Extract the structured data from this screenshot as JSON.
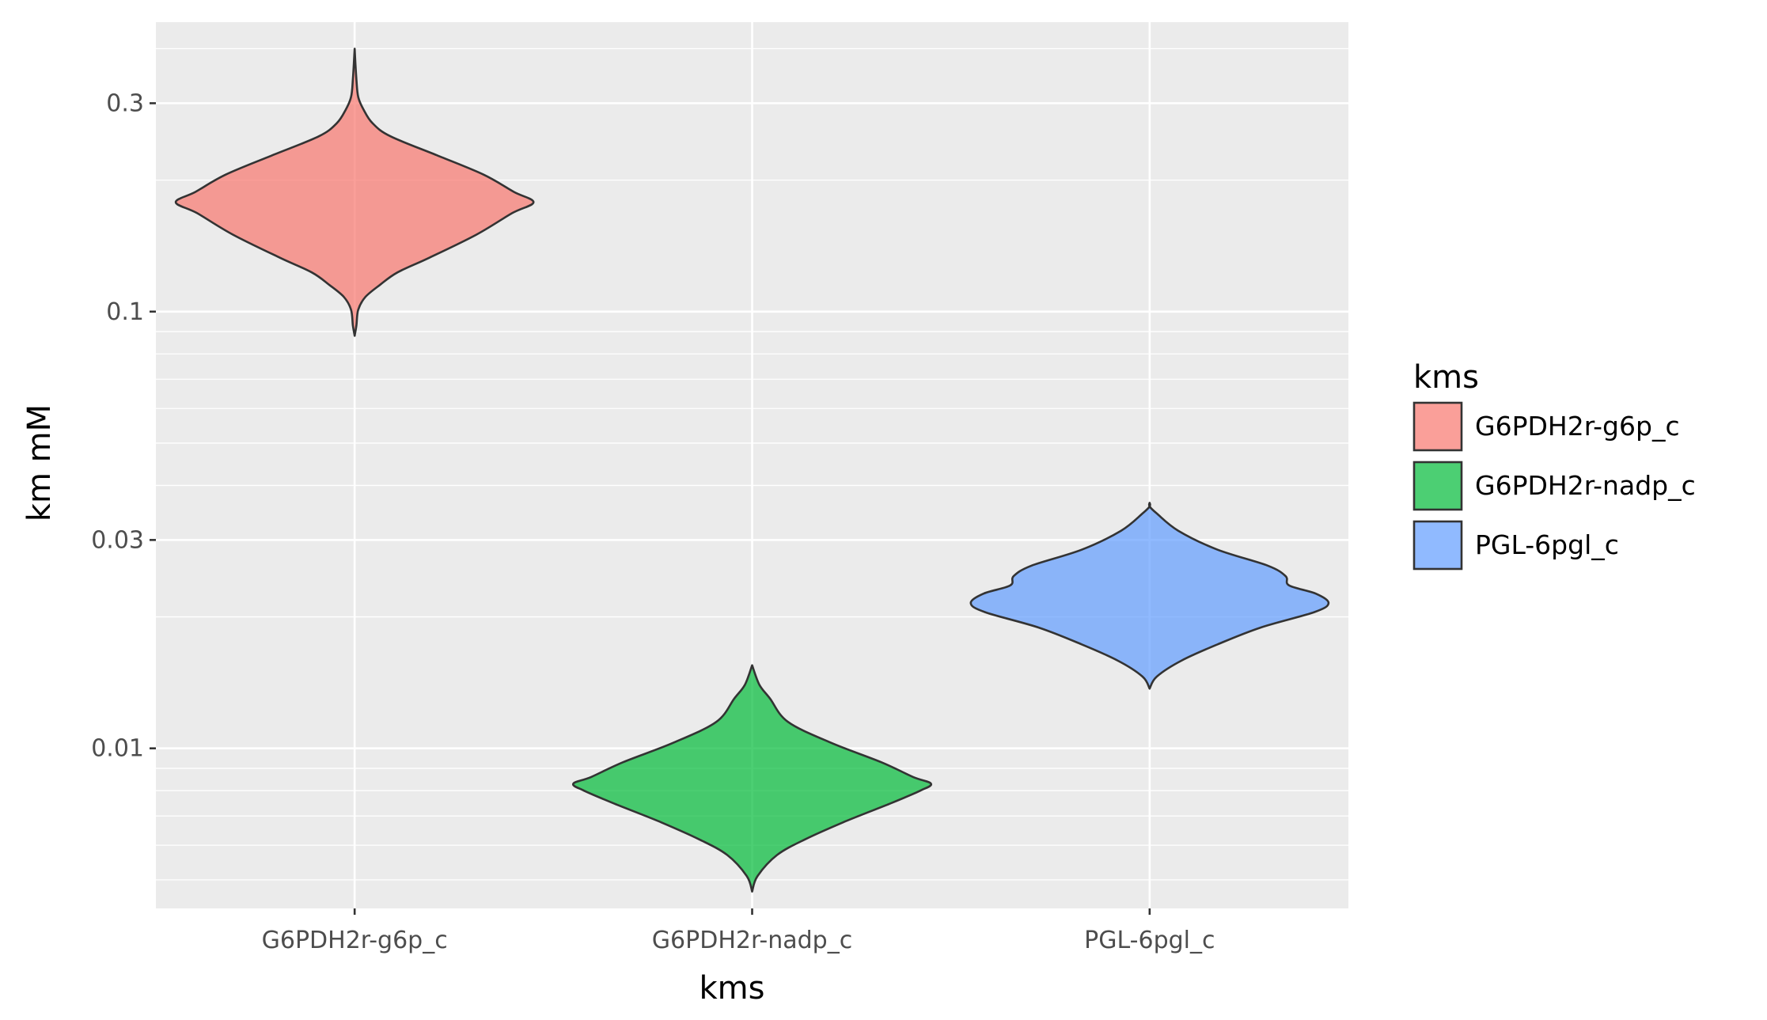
{
  "chart_data": {
    "type": "violin",
    "xlabel": "kms",
    "ylabel": "km mM",
    "categories": [
      "G6PDH2r-g6p_c",
      "G6PDH2r-nadp_c",
      "PGL-6pgl_c"
    ],
    "y_scale": "log10",
    "ylim": [
      0.0043,
      0.46
    ],
    "yticks": [
      0.01,
      0.03,
      0.1,
      0.3
    ],
    "ytick_labels": [
      "0.01",
      "0.03",
      "0.1",
      "0.3"
    ],
    "grid": true,
    "legend": {
      "title": "kms",
      "position": "right",
      "entries": [
        "G6PDH2r-g6p_c",
        "G6PDH2r-nadp_c",
        "PGL-6pgl_c"
      ]
    },
    "series": [
      {
        "category": "G6PDH2r-g6p_c",
        "color": "#f8766d",
        "y_min": 0.088,
        "y_max": 0.4,
        "density_profile": [
          [
            0.088,
            0.0
          ],
          [
            0.093,
            0.01
          ],
          [
            0.101,
            0.02
          ],
          [
            0.108,
            0.06
          ],
          [
            0.115,
            0.14
          ],
          [
            0.123,
            0.24
          ],
          [
            0.133,
            0.42
          ],
          [
            0.15,
            0.68
          ],
          [
            0.168,
            0.88
          ],
          [
            0.178,
            1.0
          ],
          [
            0.188,
            0.89
          ],
          [
            0.206,
            0.72
          ],
          [
            0.228,
            0.46
          ],
          [
            0.252,
            0.2
          ],
          [
            0.27,
            0.1
          ],
          [
            0.29,
            0.05
          ],
          [
            0.31,
            0.02
          ],
          [
            0.34,
            0.01
          ],
          [
            0.4,
            0.0
          ]
        ]
      },
      {
        "category": "G6PDH2r-nadp_c",
        "color": "#00ba38",
        "y_min": 0.0047,
        "y_max": 0.0155,
        "density_profile": [
          [
            0.0047,
            0.0
          ],
          [
            0.0051,
            0.03
          ],
          [
            0.0057,
            0.14
          ],
          [
            0.0062,
            0.3
          ],
          [
            0.0068,
            0.52
          ],
          [
            0.0075,
            0.78
          ],
          [
            0.008,
            0.94
          ],
          [
            0.0083,
            1.0
          ],
          [
            0.0086,
            0.9
          ],
          [
            0.0093,
            0.72
          ],
          [
            0.0103,
            0.44
          ],
          [
            0.0115,
            0.2
          ],
          [
            0.013,
            0.1
          ],
          [
            0.014,
            0.04
          ],
          [
            0.0155,
            0.0
          ]
        ]
      },
      {
        "category": "PGL-6pgl_c",
        "color": "#619cff",
        "y_min": 0.0137,
        "y_max": 0.0365,
        "density_profile": [
          [
            0.0137,
            0.0
          ],
          [
            0.0146,
            0.04
          ],
          [
            0.0159,
            0.18
          ],
          [
            0.0173,
            0.38
          ],
          [
            0.0189,
            0.62
          ],
          [
            0.0205,
            0.92
          ],
          [
            0.0215,
            1.0
          ],
          [
            0.0226,
            0.93
          ],
          [
            0.0236,
            0.78
          ],
          [
            0.0248,
            0.76
          ],
          [
            0.0262,
            0.66
          ],
          [
            0.0285,
            0.38
          ],
          [
            0.0315,
            0.16
          ],
          [
            0.0345,
            0.04
          ],
          [
            0.0358,
            0.0
          ],
          [
            0.0365,
            0.0
          ]
        ]
      }
    ]
  }
}
